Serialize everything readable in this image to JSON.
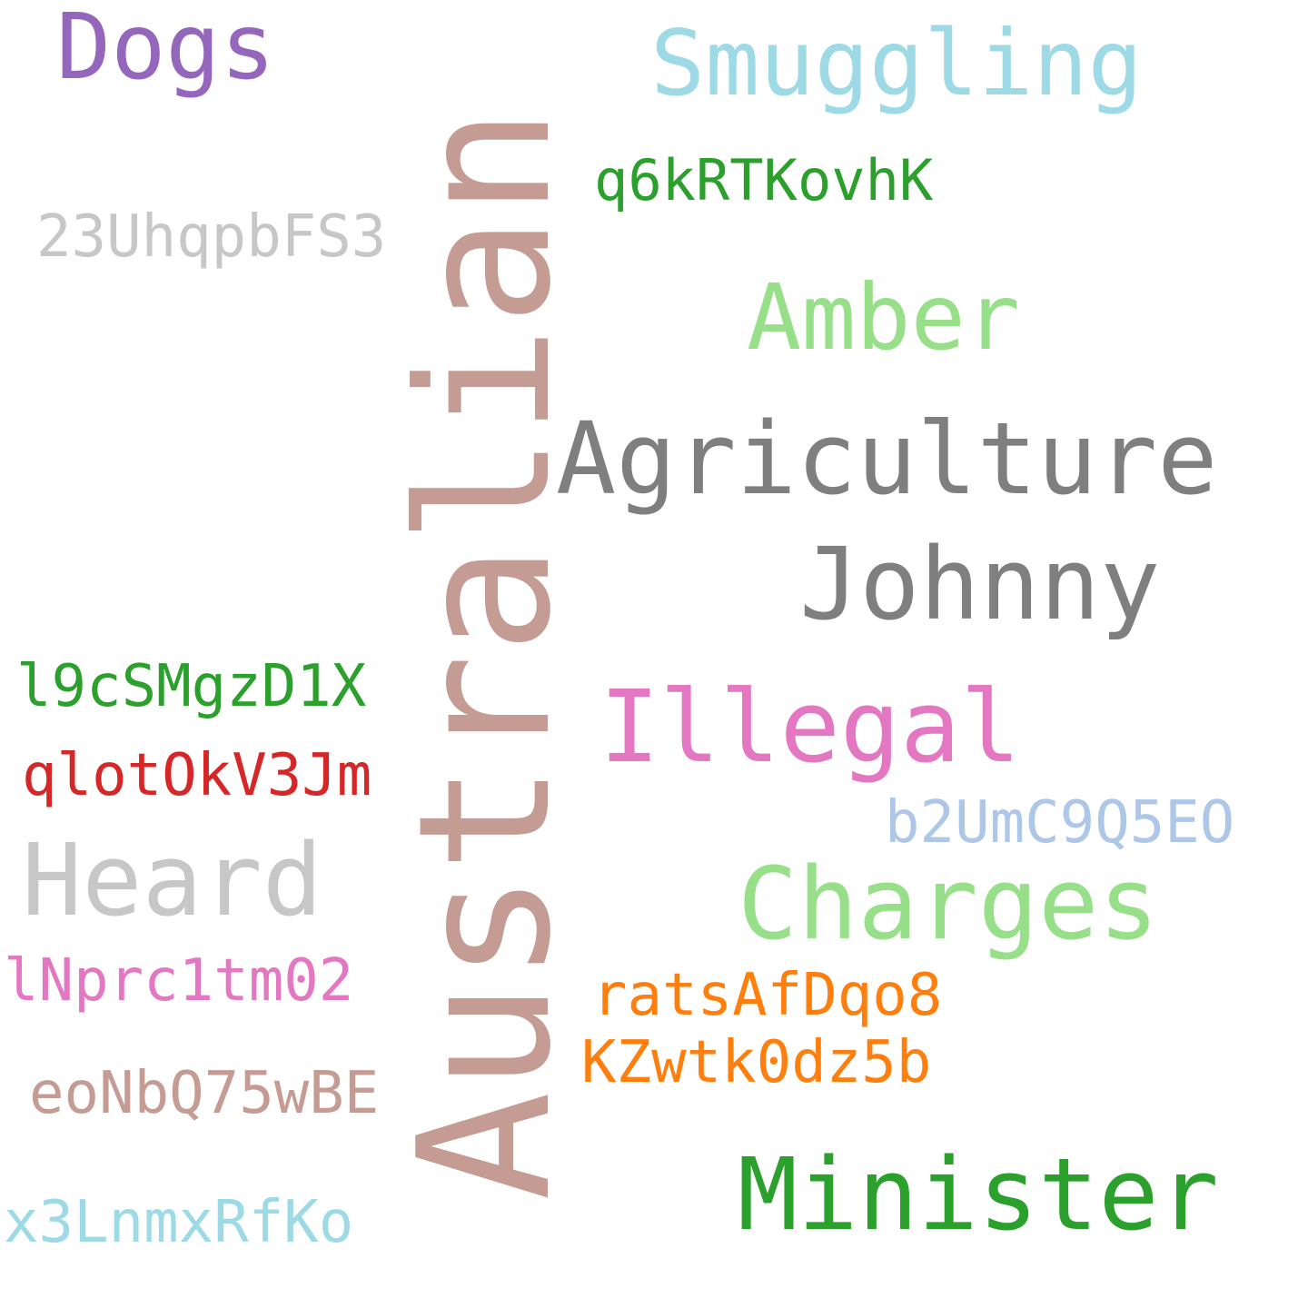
{
  "cloud": {
    "words": {
      "australian": {
        "text": "Australian",
        "color": "#c49c94"
      },
      "dogs": {
        "text": "Dogs",
        "color": "#9467bd"
      },
      "smuggling": {
        "text": "Smuggling",
        "color": "#9edae5"
      },
      "q6k": {
        "text": "q6kRTKovhK",
        "color": "#2ca02c"
      },
      "twenty3u": {
        "text": "23UhqpbFS3",
        "color": "#c7c7c7"
      },
      "amber": {
        "text": "Amber",
        "color": "#98df8a"
      },
      "agriculture": {
        "text": "Agriculture",
        "color": "#7f7f7f"
      },
      "johnny": {
        "text": "Johnny",
        "color": "#7f7f7f"
      },
      "l9c": {
        "text": "l9cSMgzD1X",
        "color": "#2ca02c"
      },
      "illegal": {
        "text": "Illegal",
        "color": "#e377c2"
      },
      "qlot": {
        "text": "qlotOkV3Jm",
        "color": "#d62728"
      },
      "b2u": {
        "text": "b2UmC9Q5EO",
        "color": "#aec7e8"
      },
      "heard": {
        "text": "Heard",
        "color": "#c7c7c7"
      },
      "charges": {
        "text": "Charges",
        "color": "#98df8a"
      },
      "lnprc": {
        "text": "lNprc1tm02",
        "color": "#e377c2"
      },
      "rats": {
        "text": "ratsAfDqo8",
        "color": "#ff7f0e"
      },
      "kzw": {
        "text": "KZwtk0dz5b",
        "color": "#ff7f0e"
      },
      "eon": {
        "text": "eoNbQ75wBE",
        "color": "#c49c94"
      },
      "minister": {
        "text": "Minister",
        "color": "#2ca02c"
      },
      "x3l": {
        "text": "x3LnmxRfKo",
        "color": "#9edae5"
      }
    }
  }
}
